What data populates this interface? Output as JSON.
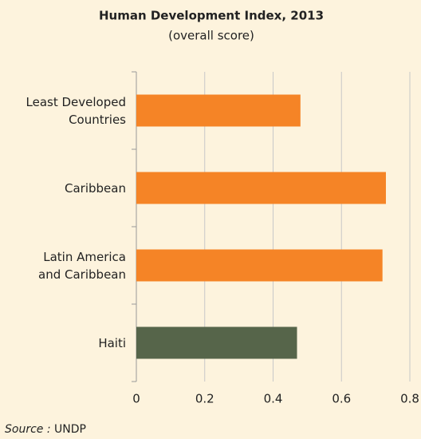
{
  "chart_data": {
    "type": "barh",
    "title": "Human Development Index, 2013",
    "subtitle": "(overall score)",
    "categories": [
      "Least Developed\nCountries",
      "Caribbean",
      "Latin America\nand Caribbean",
      "Haiti"
    ],
    "values": [
      0.48,
      0.73,
      0.72,
      0.47
    ],
    "colors": [
      "#f58426",
      "#f58426",
      "#f58426",
      "#56654a"
    ],
    "xlim": [
      0,
      0.8
    ],
    "xticks": [
      0,
      0.2,
      0.4,
      0.6,
      0.8
    ],
    "grid": true,
    "source_label": "Source :",
    "source": "UNDP"
  }
}
